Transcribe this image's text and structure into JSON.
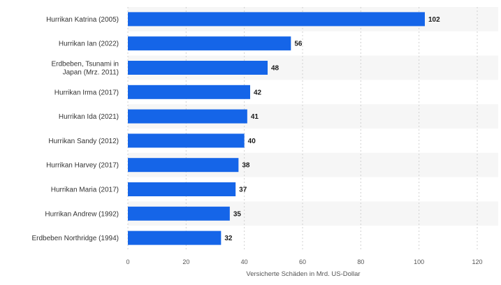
{
  "chart_data": {
    "type": "bar",
    "orientation": "horizontal",
    "categories": [
      [
        "Hurrikan Katrina (2005)"
      ],
      [
        "Hurrikan Ian (2022)"
      ],
      [
        "Erdbeben, Tsunami in",
        "Japan (Mrz. 2011)"
      ],
      [
        "Hurrikan Irma (2017)"
      ],
      [
        "Hurrikan Ida (2021)"
      ],
      [
        "Hurrikan Sandy (2012)"
      ],
      [
        "Hurrikan Harvey (2017)"
      ],
      [
        "Hurrikan Maria (2017)"
      ],
      [
        "Hurrikan Andrew (1992)"
      ],
      [
        "Erdbeben Northridge (1994)"
      ]
    ],
    "values": [
      102,
      56,
      48,
      42,
      41,
      40,
      38,
      37,
      35,
      32
    ],
    "value_labels": [
      "102",
      "56",
      "48",
      "42",
      "41",
      "40",
      "38",
      "37",
      "35",
      "32"
    ],
    "xlabel": "Versicherte Schäden in Mrd. US-Dollar",
    "xlim": [
      0,
      120
    ],
    "xticks": [
      0,
      20,
      40,
      60,
      80,
      100,
      120
    ],
    "xtick_labels": [
      "0",
      "20",
      "40",
      "60",
      "80",
      "100",
      "120"
    ],
    "grid": true,
    "colors": {
      "bar": "#1565e8",
      "band_light": "#f6f6f6",
      "band_white": "#ffffff",
      "grid": "#d0d0d0",
      "text": "#333333",
      "value_text": "#1a1a1a"
    }
  }
}
